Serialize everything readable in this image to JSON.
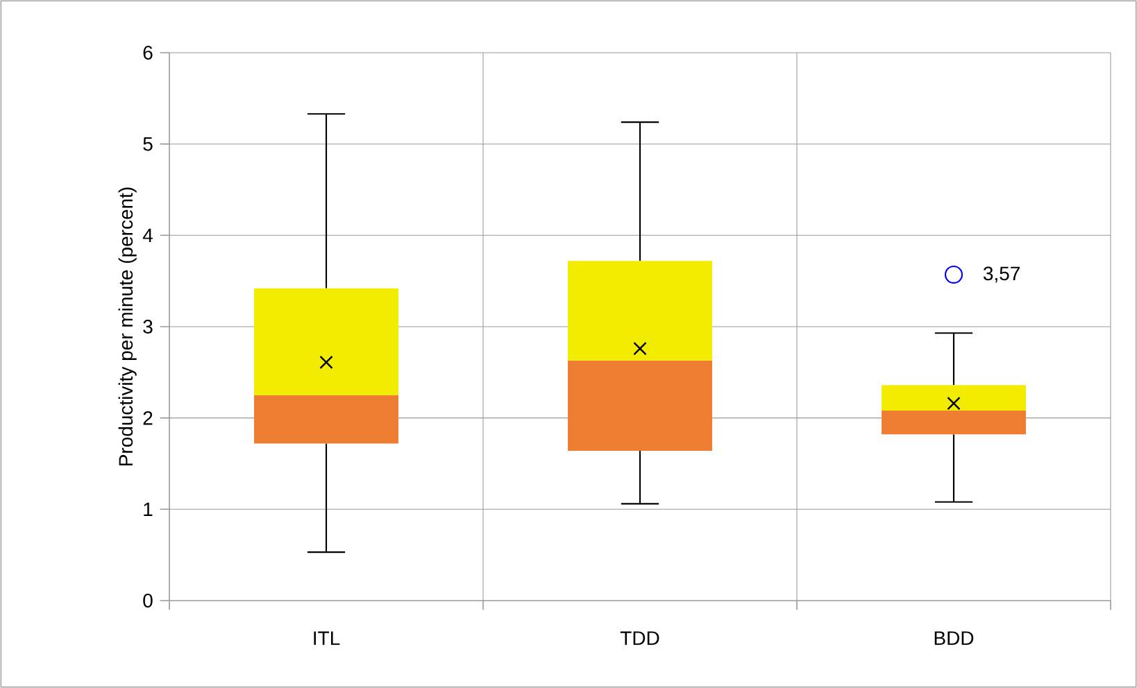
{
  "chart_data": {
    "type": "box",
    "ylabel": "Productivity per minute (percent)",
    "categories": [
      "ITL",
      "TDD",
      "BDD"
    ],
    "boxes": [
      {
        "low": 0.53,
        "q1": 1.72,
        "median": 2.25,
        "q3": 3.42,
        "high": 5.33,
        "mean": 2.61
      },
      {
        "low": 1.06,
        "q1": 1.64,
        "median": 2.63,
        "q3": 3.72,
        "high": 5.24,
        "mean": 2.76
      },
      {
        "low": 1.08,
        "q1": 1.82,
        "median": 2.08,
        "q3": 2.36,
        "high": 2.93,
        "mean": 2.16,
        "outliers": [
          3.57
        ]
      }
    ],
    "ylim": [
      0,
      6
    ],
    "yticks": [
      0,
      1,
      2,
      3,
      4,
      5,
      6
    ],
    "grid": true,
    "marker": "cross",
    "annotations": [
      "3,57"
    ]
  }
}
